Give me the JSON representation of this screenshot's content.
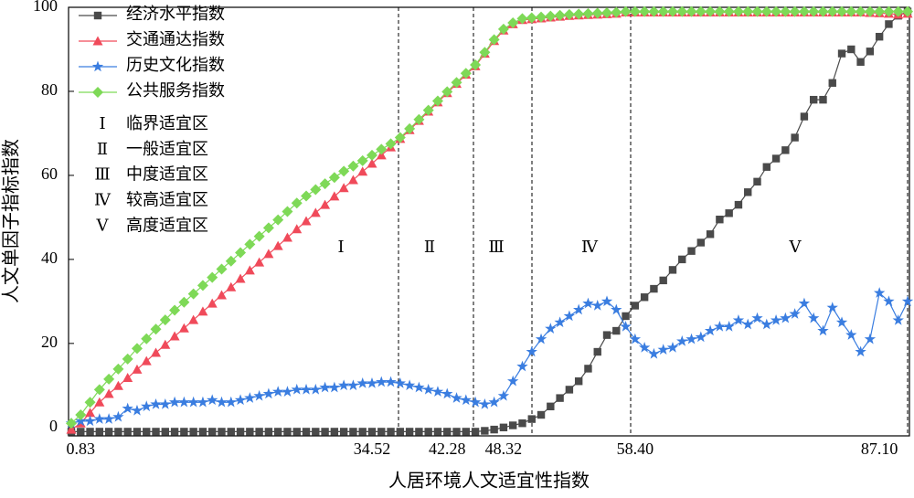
{
  "chart_data": {
    "type": "line",
    "xlabel": "人居环境人文适宜性指数",
    "ylabel": "人文单因子指标指数",
    "ylim": [
      -2,
      100
    ],
    "yticks": [
      0,
      20,
      40,
      60,
      80,
      100
    ],
    "legend": "upper left",
    "categories": [
      null,
      "0.83",
      null,
      null,
      null,
      null,
      null,
      null,
      null,
      null,
      null,
      null,
      null,
      null,
      null,
      null,
      null,
      null,
      null,
      null,
      null,
      null,
      null,
      null,
      null,
      null,
      null,
      null,
      null,
      null,
      null,
      null,
      "34.52",
      null,
      null,
      null,
      null,
      null,
      null,
      null,
      "42.28",
      null,
      null,
      null,
      null,
      null,
      "48.32",
      null,
      null,
      null,
      null,
      null,
      null,
      null,
      null,
      null,
      null,
      null,
      null,
      null,
      "58.40",
      null,
      null,
      null,
      null,
      null,
      null,
      null,
      null,
      null,
      null,
      null,
      null,
      null,
      null,
      null,
      null,
      null,
      null,
      null,
      null,
      null,
      null,
      null,
      null,
      null,
      "87.10",
      null,
      null,
      null
    ],
    "series": [
      {
        "name": "经济水平指数",
        "color": "#4a4a4a",
        "marker": "square",
        "values": [
          -1,
          -1,
          -1,
          -1,
          -1,
          -1,
          -1,
          -1,
          -1,
          -1,
          -1,
          -1,
          -1,
          -1,
          -1,
          -1,
          -1,
          -1,
          -1,
          -1,
          -1,
          -1,
          -1,
          -1,
          -1,
          -1,
          -1,
          -1,
          -1,
          -1,
          -1,
          -1,
          -1,
          -1,
          -1,
          -1,
          -1,
          -1,
          -1,
          -1,
          -1,
          -1,
          -1,
          -1,
          -0.8,
          -0.5,
          0,
          0.5,
          1,
          2,
          3,
          5,
          7,
          9,
          11,
          14,
          18,
          22,
          23,
          26.5,
          29,
          31,
          33,
          35,
          37.5,
          40,
          42,
          44,
          46,
          49.5,
          51,
          53,
          56,
          58.5,
          62,
          64,
          66,
          69,
          74,
          78,
          78,
          82,
          89,
          90,
          87,
          89.5,
          93,
          96,
          98,
          99
        ]
      },
      {
        "name": "交通通达指数",
        "color": "#f04a5a",
        "marker": "triangle",
        "values": [
          -0.5,
          1,
          3.5,
          6,
          8,
          9.9,
          11.8,
          13.8,
          15.8,
          17.8,
          19.7,
          21.7,
          23.6,
          25.6,
          27.6,
          29.5,
          31.5,
          33.4,
          35.4,
          37.4,
          39.3,
          41.3,
          43.2,
          45.2,
          47.2,
          49.1,
          51.1,
          53,
          55,
          57,
          58.9,
          60.9,
          62.8,
          64.8,
          66.7,
          68.7,
          70.8,
          73,
          75.2,
          77.4,
          79.6,
          81.8,
          84,
          86,
          89,
          92,
          94.5,
          96,
          97,
          97.2,
          97.4,
          97.6,
          97.8,
          98,
          98.1,
          98.2,
          98.3,
          98.4,
          98.5,
          98.8,
          98.8,
          98.8,
          98.8,
          98.8,
          98.8,
          98.8,
          98.8,
          98.8,
          98.8,
          98.8,
          98.8,
          98.8,
          98.8,
          98.8,
          98.8,
          98.8,
          98.8,
          98.8,
          98.8,
          98.8,
          98.8,
          98.8,
          98.8,
          98.8,
          98.8,
          98.7,
          98.6,
          98.5,
          98.3,
          98.5
        ]
      },
      {
        "name": "历史文化指数",
        "color": "#3a7de0",
        "marker": "star",
        "values": [
          1,
          1.5,
          1.5,
          2,
          2,
          2.5,
          4.5,
          4,
          5,
          5.5,
          5.5,
          6,
          6,
          6,
          6,
          6.5,
          6,
          6,
          6.5,
          7,
          7.5,
          8,
          8.5,
          8.5,
          9,
          9,
          9,
          9.5,
          9.5,
          10,
          10,
          10.5,
          10.5,
          10.8,
          10.8,
          10.5,
          10,
          9.5,
          9,
          8.5,
          8,
          7,
          6.5,
          6,
          5.5,
          6,
          7.5,
          11,
          14.5,
          18,
          21,
          23.5,
          25,
          26.5,
          28,
          29.5,
          29,
          30,
          28,
          24,
          21,
          19,
          17.5,
          18.5,
          19,
          20.5,
          21,
          21.5,
          23,
          24,
          24,
          25.5,
          24.5,
          26,
          24.5,
          25.5,
          26,
          27,
          29.5,
          26,
          23,
          28.5,
          25,
          22,
          18,
          21,
          32,
          30,
          25.5,
          30
        ]
      },
      {
        "name": "公共服务指数",
        "color": "#7ed957",
        "marker": "diamond",
        "values": [
          1,
          3,
          6,
          9,
          11.5,
          13.9,
          16.3,
          18.8,
          21.1,
          23.4,
          25.6,
          27.9,
          29.8,
          31.8,
          33.8,
          35.7,
          37.7,
          39.6,
          41.6,
          43.6,
          45.5,
          47.5,
          49.4,
          51.4,
          53.4,
          55.1,
          56.6,
          58,
          59.5,
          61,
          62.2,
          63.5,
          64.8,
          66.2,
          67.5,
          69,
          71.1,
          73.3,
          75.5,
          77.7,
          79.9,
          82.1,
          84.3,
          86.3,
          89.3,
          92.3,
          94.8,
          96.3,
          97.3,
          97.5,
          97.7,
          97.9,
          98.1,
          98.3,
          98.4,
          98.5,
          98.6,
          98.7,
          98.8,
          99,
          99,
          99,
          99,
          99,
          99,
          99,
          99,
          99,
          99,
          99,
          99,
          99,
          99,
          99,
          99,
          99,
          99,
          99,
          99,
          99,
          99,
          99,
          99,
          99,
          99,
          99,
          99,
          99,
          99,
          99
        ]
      }
    ],
    "regions": [
      {
        "numeral": "Ⅰ",
        "name": "临界适宜区"
      },
      {
        "numeral": "Ⅱ",
        "name": "一般适宜区"
      },
      {
        "numeral": "Ⅲ",
        "name": "中度适宜区"
      },
      {
        "numeral": "Ⅳ",
        "name": "较高适宜区"
      },
      {
        "numeral": "Ⅴ",
        "name": "高度适宜区"
      }
    ]
  }
}
